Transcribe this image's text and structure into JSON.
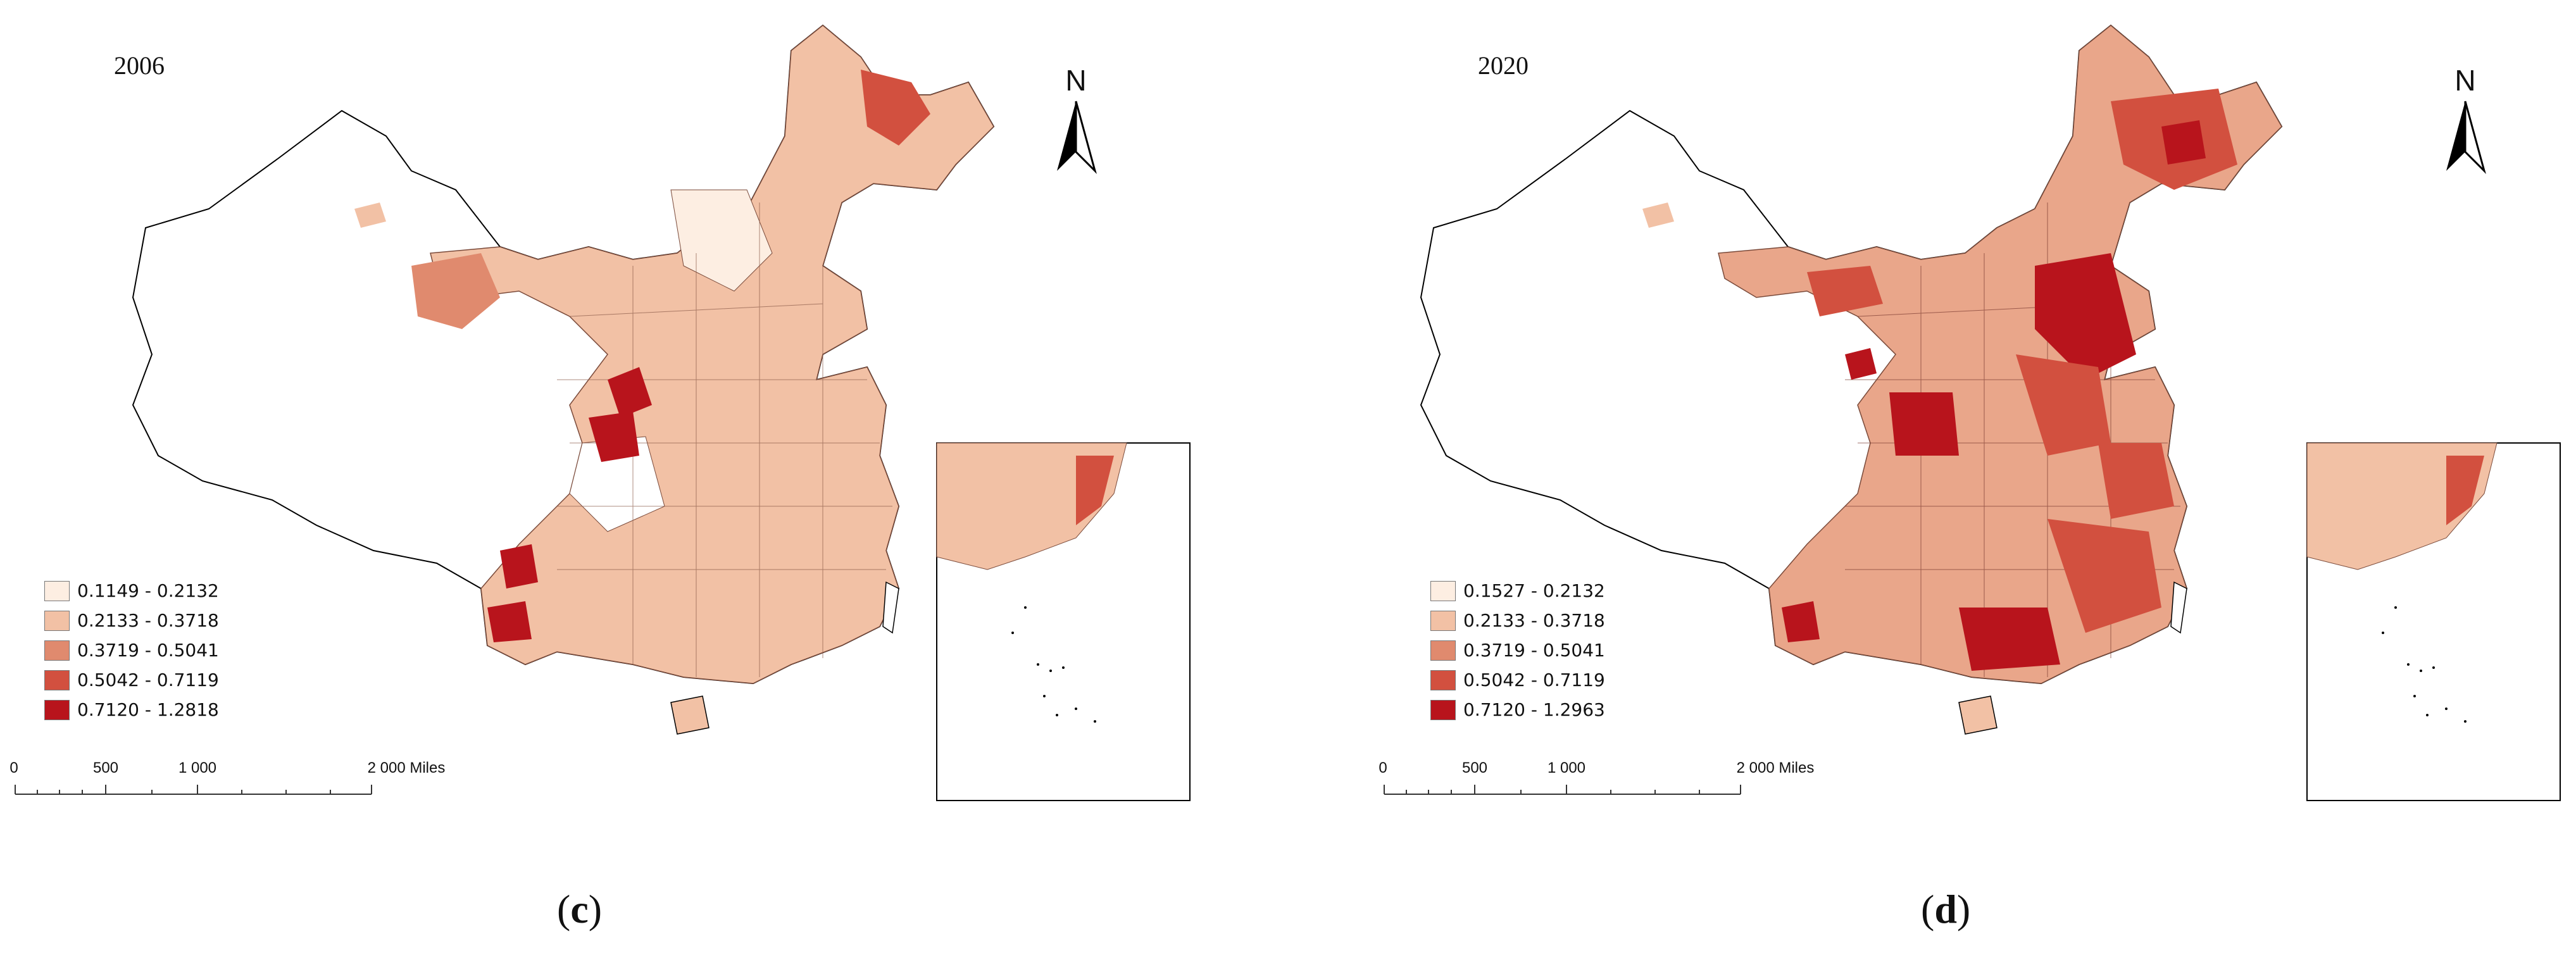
{
  "panels": [
    {
      "id": "c",
      "year": "2006",
      "north_label": "N",
      "legend": [
        {
          "label": "0.1149 - 0.2132",
          "color": "#fdeee2"
        },
        {
          "label": "0.2133 - 0.3718",
          "color": "#f2c1a5"
        },
        {
          "label": "0.3719 - 0.5041",
          "color": "#e08a6e"
        },
        {
          "label": "0.5042 - 0.7119",
          "color": "#d2503f"
        },
        {
          "label": "0.7120 - 1.2818",
          "color": "#b8141c"
        }
      ],
      "scale": {
        "labels": [
          "0",
          "500",
          "1 000",
          "2 000 Miles"
        ]
      },
      "caption_open": "(",
      "caption_letter": "c",
      "caption_close": ")"
    },
    {
      "id": "d",
      "year": "2020",
      "north_label": "N",
      "legend": [
        {
          "label": "0.1527 - 0.2132",
          "color": "#fdeee2"
        },
        {
          "label": "0.2133 - 0.3718",
          "color": "#f2c1a5"
        },
        {
          "label": "0.3719 - 0.5041",
          "color": "#e08a6e"
        },
        {
          "label": "0.5042 - 0.7119",
          "color": "#d2503f"
        },
        {
          "label": "0.7120 - 1.2963",
          "color": "#b8141c"
        }
      ],
      "scale": {
        "labels": [
          "0",
          "500",
          "1 000",
          "2 000 Miles"
        ]
      },
      "caption_open": "(",
      "caption_letter": "d",
      "caption_close": ")"
    }
  ]
}
